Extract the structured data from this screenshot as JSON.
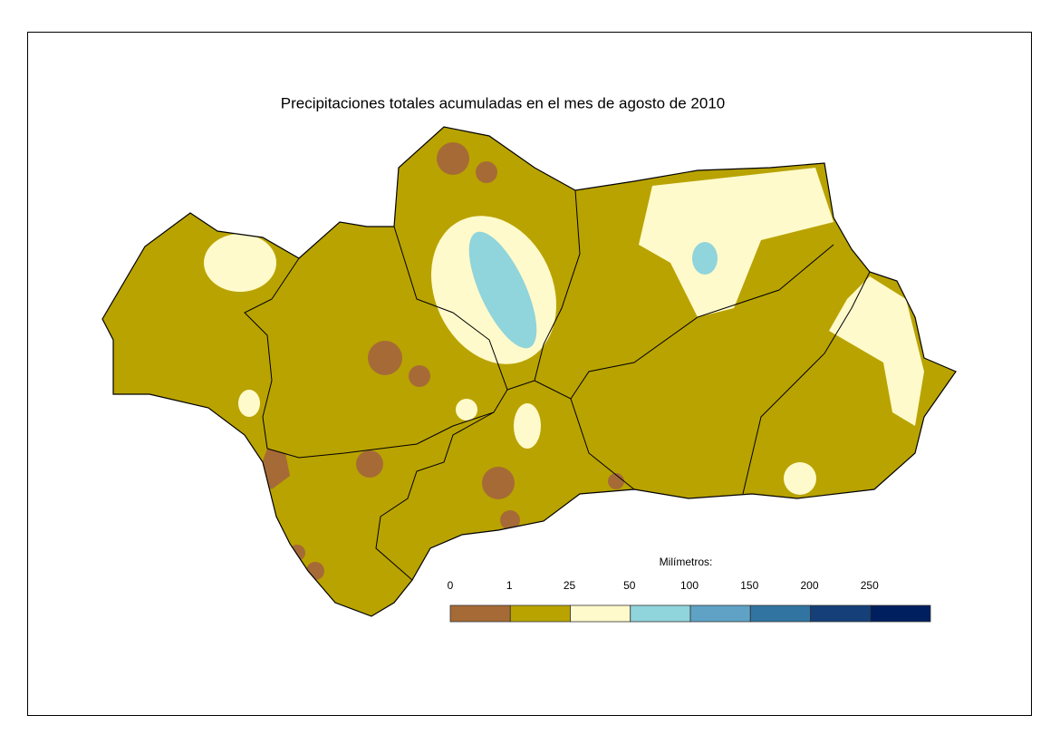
{
  "title": "Precipitaciones totales acumuladas en el mes de agosto de 2010",
  "legend": {
    "title": "Milímetros:",
    "breaks": [
      0,
      1,
      25,
      50,
      100,
      150,
      200,
      250
    ],
    "colors": [
      "#a66a37",
      "#b9a300",
      "#fffacb",
      "#90d4dc",
      "#5fa2c6",
      "#3174a2",
      "#143f78",
      "#001f5e"
    ]
  }
}
